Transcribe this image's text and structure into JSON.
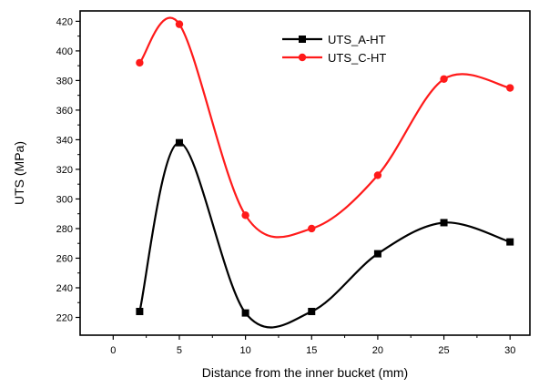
{
  "chart_data": {
    "type": "line",
    "xlabel": "Distance from the inner bucket (mm)",
    "ylabel": "UTS (MPa)",
    "xlim": [
      -2.5,
      31.5
    ],
    "ylim": [
      208,
      427
    ],
    "x_ticks": [
      0,
      5,
      10,
      15,
      20,
      25,
      30
    ],
    "y_ticks": [
      220,
      240,
      260,
      280,
      300,
      320,
      340,
      360,
      380,
      400,
      420
    ],
    "smooth": true,
    "series": [
      {
        "name": "UTS_A-HT",
        "color": "#000000",
        "marker": "square",
        "x": [
          2,
          5,
          10,
          15,
          20,
          25,
          30
        ],
        "y": [
          224,
          338,
          223,
          224,
          263,
          284,
          271
        ]
      },
      {
        "name": "UTS_C-HT",
        "color": "#ff1a1a",
        "marker": "circle",
        "x": [
          2,
          5,
          10,
          15,
          20,
          25,
          30
        ],
        "y": [
          392,
          418,
          289,
          280,
          316,
          381,
          375
        ]
      }
    ],
    "legend_position": "top-right",
    "grid": false
  }
}
